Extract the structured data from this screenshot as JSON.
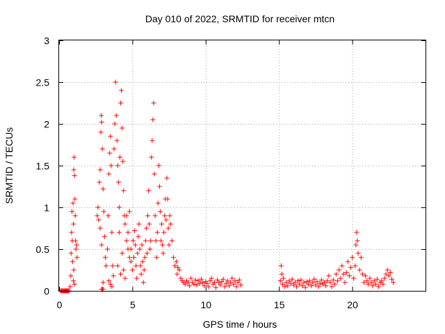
{
  "chart_data": {
    "type": "scatter",
    "title": "Day 010 of 2022, SRMTID for receiver mtcn",
    "xlabel": "GPS time / hours",
    "ylabel": "SRMTID / TECUs",
    "xlim": [
      0,
      25
    ],
    "ylim": [
      0,
      3
    ],
    "xticks": [
      0,
      5,
      10,
      15,
      20
    ],
    "xtick_labels": [
      "0",
      "5",
      "10",
      "15",
      "20"
    ],
    "yticks": [
      0,
      0.5,
      1,
      1.5,
      2,
      2.5,
      3
    ],
    "ytick_labels": [
      "0",
      "0.5",
      "1",
      "1.5",
      "2",
      "2.5",
      "3"
    ],
    "grid": true,
    "marker": "plus",
    "color": "#ff0000",
    "series": [
      {
        "name": "SRMTID",
        "points": [
          [
            0.1,
            0.0
          ],
          [
            0.15,
            0.0
          ],
          [
            0.2,
            0.0
          ],
          [
            0.25,
            0.0
          ],
          [
            0.3,
            0.0
          ],
          [
            0.35,
            0.0
          ],
          [
            0.4,
            0.0
          ],
          [
            0.45,
            0.0
          ],
          [
            0.5,
            0.0
          ],
          [
            0.55,
            0.0
          ],
          [
            0.6,
            0.0
          ],
          [
            0.65,
            0.0
          ],
          [
            0.7,
            0.0
          ],
          [
            0.75,
            0.05
          ],
          [
            0.8,
            0.18
          ],
          [
            0.82,
            0.45
          ],
          [
            0.85,
            0.7
          ],
          [
            0.88,
            0.95
          ],
          [
            0.9,
            0.6
          ],
          [
            0.92,
            0.35
          ],
          [
            0.95,
            1.05
          ],
          [
            0.98,
            0.8
          ],
          [
            1.0,
            1.45
          ],
          [
            1.02,
            1.6
          ],
          [
            1.05,
            1.38
          ],
          [
            1.08,
            1.1
          ],
          [
            1.1,
            0.9
          ],
          [
            1.12,
            0.6
          ],
          [
            1.15,
            0.5
          ],
          [
            1.2,
            0.55
          ],
          [
            1.22,
            0.4
          ],
          [
            1.0,
            0.25
          ],
          [
            0.97,
            0.12
          ],
          [
            1.05,
            0.08
          ],
          [
            2.6,
            0.9
          ],
          [
            2.65,
            1.0
          ],
          [
            2.7,
            0.85
          ],
          [
            2.75,
            1.3
          ],
          [
            2.8,
            1.45
          ],
          [
            2.85,
            1.9
          ],
          [
            2.88,
            2.1
          ],
          [
            2.9,
            2.02
          ],
          [
            2.95,
            1.7
          ],
          [
            3.0,
            1.22
          ],
          [
            3.05,
            0.95
          ],
          [
            3.1,
            0.65
          ],
          [
            3.15,
            0.4
          ],
          [
            3.2,
            0.3
          ],
          [
            3.0,
            0.1
          ],
          [
            2.9,
            0.55
          ],
          [
            2.8,
            0.75
          ],
          [
            2.9,
            0.02
          ],
          [
            2.95,
            0.02
          ],
          [
            3.0,
            0.02
          ],
          [
            3.3,
            0.5
          ],
          [
            3.35,
            0.9
          ],
          [
            3.4,
            1.4
          ],
          [
            3.45,
            1.65
          ],
          [
            3.5,
            1.85
          ],
          [
            3.55,
            1.5
          ],
          [
            3.6,
            0.7
          ],
          [
            3.65,
            0.3
          ],
          [
            3.7,
            0.18
          ],
          [
            3.5,
            0.08
          ],
          [
            3.6,
            0.05
          ],
          [
            3.4,
            0.12
          ],
          [
            3.75,
            1.7
          ],
          [
            3.8,
            2.0
          ],
          [
            3.85,
            2.5
          ],
          [
            3.9,
            2.1
          ],
          [
            3.95,
            1.8
          ],
          [
            4.0,
            1.5
          ],
          [
            4.05,
            1.3
          ],
          [
            4.1,
            1.0
          ],
          [
            4.15,
            1.6
          ],
          [
            4.2,
            2.25
          ],
          [
            4.25,
            2.4
          ],
          [
            4.3,
            1.95
          ],
          [
            4.35,
            1.55
          ],
          [
            4.4,
            1.2
          ],
          [
            4.45,
            0.9
          ],
          [
            4.5,
            0.8
          ],
          [
            4.6,
            0.6
          ],
          [
            4.7,
            0.5
          ],
          [
            4.8,
            0.4
          ],
          [
            4.9,
            0.35
          ],
          [
            4.0,
            0.3
          ],
          [
            4.1,
            0.7
          ],
          [
            4.2,
            0.2
          ],
          [
            4.3,
            0.45
          ],
          [
            4.4,
            0.25
          ],
          [
            4.5,
            0.15
          ],
          [
            4.6,
            0.9
          ],
          [
            4.7,
            0.7
          ],
          [
            4.8,
            0.95
          ],
          [
            4.9,
            0.5
          ],
          [
            5.0,
            0.25
          ],
          [
            5.05,
            0.6
          ],
          [
            5.1,
            0.4
          ],
          [
            5.15,
            0.72
          ],
          [
            5.2,
            0.55
          ],
          [
            5.25,
            0.3
          ],
          [
            5.3,
            0.15
          ],
          [
            5.35,
            0.45
          ],
          [
            5.4,
            0.65
          ],
          [
            5.45,
            0.8
          ],
          [
            5.5,
            0.5
          ],
          [
            5.55,
            0.3
          ],
          [
            5.6,
            0.2
          ],
          [
            5.65,
            0.55
          ],
          [
            5.7,
            0.35
          ],
          [
            5.75,
            0.1
          ],
          [
            5.8,
            0.25
          ],
          [
            5.85,
            0.4
          ],
          [
            5.9,
            0.6
          ],
          [
            5.95,
            0.75
          ],
          [
            6.0,
            0.45
          ],
          [
            6.05,
            0.9
          ],
          [
            6.1,
            1.2
          ],
          [
            6.15,
            0.8
          ],
          [
            6.2,
            0.5
          ],
          [
            6.25,
            0.6
          ],
          [
            6.3,
            1.6
          ],
          [
            6.35,
            1.8
          ],
          [
            6.4,
            2.05
          ],
          [
            6.45,
            2.25
          ],
          [
            6.5,
            1.4
          ],
          [
            6.55,
            0.9
          ],
          [
            6.6,
            0.6
          ],
          [
            6.65,
            0.4
          ],
          [
            6.7,
            0.7
          ],
          [
            6.75,
            1.05
          ],
          [
            6.8,
            1.5
          ],
          [
            6.85,
            1.25
          ],
          [
            6.9,
            0.95
          ],
          [
            6.95,
            0.6
          ],
          [
            7.0,
            0.8
          ],
          [
            7.05,
            0.55
          ],
          [
            7.1,
            0.45
          ],
          [
            7.15,
            0.7
          ],
          [
            7.2,
            0.9
          ],
          [
            7.25,
            1.1
          ],
          [
            7.3,
            0.85
          ],
          [
            7.35,
            1.35
          ],
          [
            7.4,
            1.1
          ],
          [
            7.45,
            0.75
          ],
          [
            7.5,
            0.55
          ],
          [
            7.55,
            0.9
          ],
          [
            7.6,
            0.8
          ],
          [
            7.7,
            0.6
          ],
          [
            7.8,
            0.4
          ],
          [
            7.9,
            0.3
          ],
          [
            8.0,
            0.35
          ],
          [
            8.05,
            0.2
          ],
          [
            8.1,
            0.28
          ],
          [
            8.2,
            0.25
          ],
          [
            8.3,
            0.15
          ],
          [
            8.4,
            0.12
          ],
          [
            8.5,
            0.1
          ],
          [
            8.6,
            0.08
          ],
          [
            8.7,
            0.12
          ],
          [
            8.8,
            0.1
          ],
          [
            8.9,
            0.06
          ],
          [
            9.0,
            0.15
          ],
          [
            9.1,
            0.1
          ],
          [
            9.2,
            0.08
          ],
          [
            9.3,
            0.13
          ],
          [
            9.4,
            0.07
          ],
          [
            9.5,
            0.12
          ],
          [
            9.6,
            0.09
          ],
          [
            9.7,
            0.14
          ],
          [
            9.8,
            0.1
          ],
          [
            9.9,
            0.06
          ],
          [
            10.0,
            0.11
          ],
          [
            10.1,
            0.09
          ],
          [
            10.2,
            0.05
          ],
          [
            10.3,
            0.12
          ],
          [
            10.4,
            0.15
          ],
          [
            10.5,
            0.08
          ],
          [
            10.6,
            0.1
          ],
          [
            10.7,
            0.04
          ],
          [
            10.8,
            0.13
          ],
          [
            10.9,
            0.1
          ],
          [
            11.0,
            0.07
          ],
          [
            11.1,
            0.11
          ],
          [
            11.2,
            0.14
          ],
          [
            11.3,
            0.05
          ],
          [
            11.4,
            0.09
          ],
          [
            11.5,
            0.12
          ],
          [
            11.6,
            0.06
          ],
          [
            11.7,
            0.1
          ],
          [
            11.8,
            0.15
          ],
          [
            11.9,
            0.08
          ],
          [
            12.0,
            0.12
          ],
          [
            12.1,
            0.05
          ],
          [
            12.2,
            0.1
          ],
          [
            12.3,
            0.13
          ],
          [
            12.4,
            0.07
          ],
          [
            15.1,
            0.12
          ],
          [
            15.15,
            0.3
          ],
          [
            15.2,
            0.2
          ],
          [
            15.25,
            0.08
          ],
          [
            15.3,
            0.15
          ],
          [
            15.4,
            0.05
          ],
          [
            15.5,
            0.1
          ],
          [
            15.6,
            0.06
          ],
          [
            15.7,
            0.12
          ],
          [
            15.8,
            0.09
          ],
          [
            15.9,
            0.14
          ],
          [
            16.0,
            0.07
          ],
          [
            16.1,
            0.1
          ],
          [
            16.2,
            0.05
          ],
          [
            16.3,
            0.12
          ],
          [
            16.4,
            0.08
          ],
          [
            16.5,
            0.13
          ],
          [
            16.6,
            0.06
          ],
          [
            16.7,
            0.1
          ],
          [
            16.8,
            0.04
          ],
          [
            16.9,
            0.11
          ],
          [
            17.0,
            0.08
          ],
          [
            17.1,
            0.12
          ],
          [
            17.2,
            0.06
          ],
          [
            17.3,
            0.1
          ],
          [
            17.4,
            0.14
          ],
          [
            17.5,
            0.07
          ],
          [
            17.6,
            0.11
          ],
          [
            17.7,
            0.05
          ],
          [
            17.8,
            0.09
          ],
          [
            17.9,
            0.13
          ],
          [
            18.0,
            0.08
          ],
          [
            18.1,
            0.1
          ],
          [
            18.2,
            0.06
          ],
          [
            18.3,
            0.12
          ],
          [
            18.4,
            0.18
          ],
          [
            18.5,
            0.1
          ],
          [
            18.6,
            0.05
          ],
          [
            18.7,
            0.13
          ],
          [
            18.8,
            0.08
          ],
          [
            18.9,
            0.2
          ],
          [
            19.0,
            0.12
          ],
          [
            19.1,
            0.25
          ],
          [
            19.2,
            0.15
          ],
          [
            19.3,
            0.3
          ],
          [
            19.4,
            0.2
          ],
          [
            19.5,
            0.1
          ],
          [
            19.6,
            0.22
          ],
          [
            19.7,
            0.35
          ],
          [
            19.8,
            0.18
          ],
          [
            19.9,
            0.28
          ],
          [
            20.0,
            0.4
          ],
          [
            20.1,
            0.15
          ],
          [
            20.2,
            0.3
          ],
          [
            20.25,
            0.55
          ],
          [
            20.3,
            0.7
          ],
          [
            20.35,
            0.6
          ],
          [
            20.4,
            0.45
          ],
          [
            20.5,
            0.25
          ],
          [
            20.6,
            0.4
          ],
          [
            20.7,
            0.2
          ],
          [
            20.8,
            0.1
          ],
          [
            20.9,
            0.18
          ],
          [
            21.0,
            0.12
          ],
          [
            21.1,
            0.08
          ],
          [
            21.2,
            0.15
          ],
          [
            21.3,
            0.1
          ],
          [
            21.4,
            0.06
          ],
          [
            21.5,
            0.12
          ],
          [
            21.6,
            0.08
          ],
          [
            21.7,
            0.14
          ],
          [
            21.8,
            0.05
          ],
          [
            21.9,
            0.1
          ],
          [
            22.0,
            0.12
          ],
          [
            22.1,
            0.08
          ],
          [
            22.2,
            0.15
          ],
          [
            22.3,
            0.2
          ],
          [
            22.4,
            0.25
          ],
          [
            22.5,
            0.18
          ],
          [
            22.6,
            0.22
          ],
          [
            22.7,
            0.14
          ],
          [
            22.8,
            0.1
          ]
        ]
      }
    ]
  }
}
